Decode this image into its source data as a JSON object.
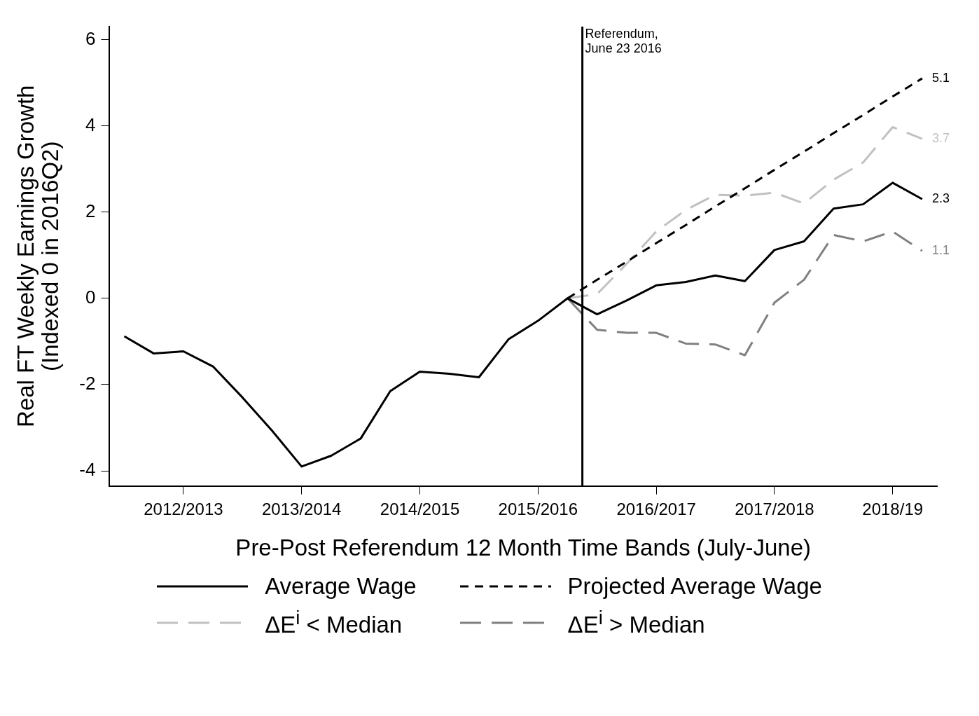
{
  "chart_data": {
    "type": "line",
    "xlabel": "Pre-Post Referendum 12 Month Time Bands (July-June)",
    "ylabel": "Real FT Weekly Earnings Growth\n(Indexed 0 in 2016Q2)",
    "categories": [
      null,
      null,
      "2012/2013",
      null,
      null,
      null,
      "2013/2014",
      null,
      null,
      null,
      "2014/2015",
      null,
      null,
      null,
      "2015/2016",
      null,
      null,
      null,
      "2016/2017",
      null,
      null,
      null,
      "2017/2018",
      null,
      null,
      null,
      "2018/19",
      null
    ],
    "ylim": [
      -4.35,
      6.3
    ],
    "yticks": [
      -4,
      -2,
      0,
      2,
      4,
      6
    ],
    "grid": false,
    "legend": "bottom",
    "marker": "none",
    "series": [
      {
        "name": "Average Wage",
        "color": "#000000",
        "line_style": "solid",
        "values": [
          -0.88,
          -1.28,
          -1.23,
          -1.58,
          -2.3,
          -3.07,
          -3.9,
          -3.65,
          -3.25,
          -2.15,
          -1.7,
          -1.75,
          -1.83,
          -0.95,
          -0.52,
          0,
          -0.37,
          -0.05,
          0.3,
          0.38,
          0.53,
          0.4,
          1.12,
          1.32,
          2.08,
          2.18,
          2.68,
          2.3
        ]
      },
      {
        "name": "Projected Average Wage",
        "color": "#000000",
        "line_style": "dashed",
        "values": [
          null,
          null,
          null,
          null,
          null,
          null,
          null,
          null,
          null,
          null,
          null,
          null,
          null,
          null,
          null,
          0,
          0.43,
          0.85,
          1.28,
          1.7,
          2.13,
          2.55,
          2.98,
          3.4,
          3.83,
          4.25,
          4.68,
          5.1
        ]
      },
      {
        "name": "ΔE$^{i}$ < Median",
        "color": "#c0c0c0",
        "line_style": "dashed",
        "values": [
          null,
          null,
          null,
          null,
          null,
          null,
          null,
          null,
          null,
          null,
          null,
          null,
          null,
          null,
          null,
          0,
          0.1,
          0.8,
          1.55,
          2.05,
          2.4,
          2.38,
          2.45,
          2.2,
          2.75,
          3.15,
          3.97,
          3.7
        ]
      },
      {
        "name": "ΔE$^{i}$ > Median",
        "color": "#808080",
        "line_style": "dashed",
        "values": [
          null,
          null,
          null,
          null,
          null,
          null,
          null,
          null,
          null,
          null,
          null,
          null,
          null,
          null,
          null,
          0,
          -0.73,
          -0.8,
          -0.8,
          -1.05,
          -1.07,
          -1.32,
          -0.1,
          0.43,
          1.47,
          1.32,
          1.55,
          1.1
        ]
      }
    ],
    "annotations": [
      "Referendum,\nJune 23 2016",
      "5.1",
      "3.7",
      "2.3",
      "1.1"
    ]
  }
}
